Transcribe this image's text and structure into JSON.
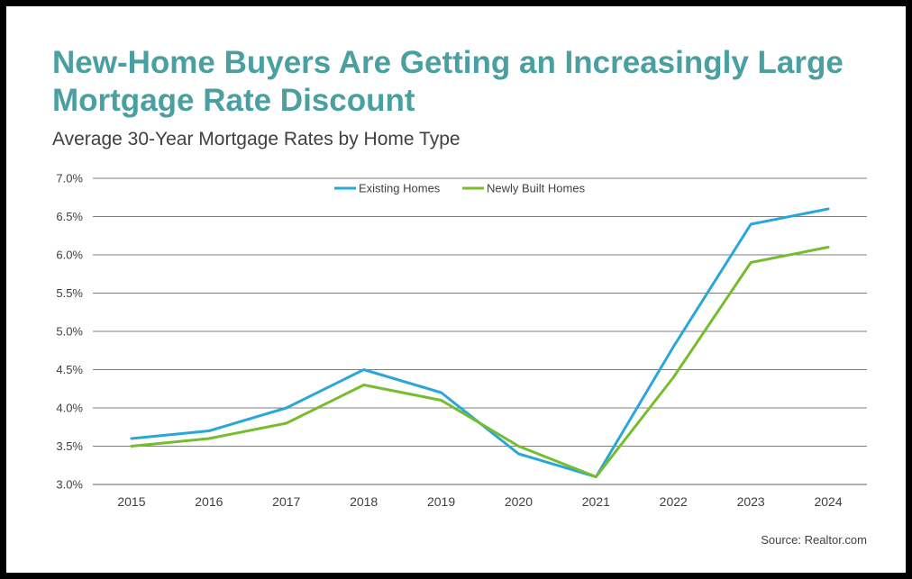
{
  "title": "New-Home Buyers Are Getting an Increasingly Large Mortgage Rate Discount",
  "subtitle": "Average 30-Year Mortgage Rates by Home Type",
  "source": "Source: Realtor.com",
  "colors": {
    "title": "#4a9fa0",
    "existing": "#2aa7d9",
    "newly_built": "#76bd2e",
    "grid": "#7f7f7f",
    "background": "#ffffff",
    "frame": "#000000"
  },
  "chart_data": {
    "type": "line",
    "title": "New-Home Buyers Are Getting an Increasingly Large Mortgage Rate Discount",
    "subtitle": "Average 30-Year Mortgage Rates by Home Type",
    "xlabel": "",
    "ylabel": "",
    "x": [
      "2015",
      "2016",
      "2017",
      "2018",
      "2019",
      "2020",
      "2021",
      "2022",
      "2023",
      "2024"
    ],
    "ylim": [
      3.0,
      7.0
    ],
    "y_ticks": [
      3.0,
      3.5,
      4.0,
      4.5,
      5.0,
      5.5,
      6.0,
      6.5,
      7.0
    ],
    "y_tick_labels": [
      "3.0%",
      "3.5%",
      "4.0%",
      "4.5%",
      "5.0%",
      "5.5%",
      "6.0%",
      "6.5%",
      "7.0%"
    ],
    "grid": true,
    "legend_position": "top-center",
    "series": [
      {
        "name": "Existing Homes",
        "color": "#2aa7d9",
        "values": [
          3.6,
          3.7,
          4.0,
          4.5,
          4.2,
          3.4,
          3.1,
          4.8,
          6.4,
          6.6
        ]
      },
      {
        "name": "Newly Built Homes",
        "color": "#76bd2e",
        "values": [
          3.5,
          3.6,
          3.8,
          4.3,
          4.1,
          3.5,
          3.1,
          4.4,
          5.9,
          6.1
        ]
      }
    ]
  }
}
